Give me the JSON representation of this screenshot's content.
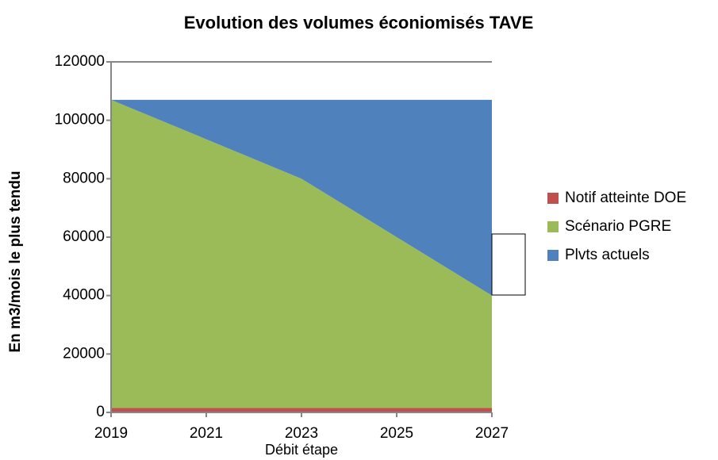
{
  "chart_data": {
    "type": "stacked_area",
    "title": "Evolution des volumes éconiomisés TAVE",
    "x_label": "Débit étape",
    "y_label": "En m3/mois le plus tendu",
    "x": [
      2019,
      2021,
      2023,
      2025,
      2027
    ],
    "series": [
      {
        "name": "Notif atteinte DOE",
        "color": "#c0504d",
        "values": [
          1500,
          1500,
          1500,
          1500,
          1500
        ]
      },
      {
        "name": "Scénario PGRE",
        "color": "#9bbb59",
        "values": [
          105500,
          92000,
          78500,
          58500,
          38500
        ]
      },
      {
        "name": "Plvts actuels",
        "color": "#4f81bd",
        "values": [
          0,
          13500,
          27000,
          47000,
          67000
        ]
      }
    ],
    "xlim": [
      2019,
      2027
    ],
    "xticks": [
      2019,
      2021,
      2023,
      2025,
      2027
    ],
    "ylim": [
      0,
      120000
    ],
    "yticks": [
      0,
      20000,
      40000,
      60000,
      80000,
      100000,
      120000
    ],
    "legend": "right"
  }
}
